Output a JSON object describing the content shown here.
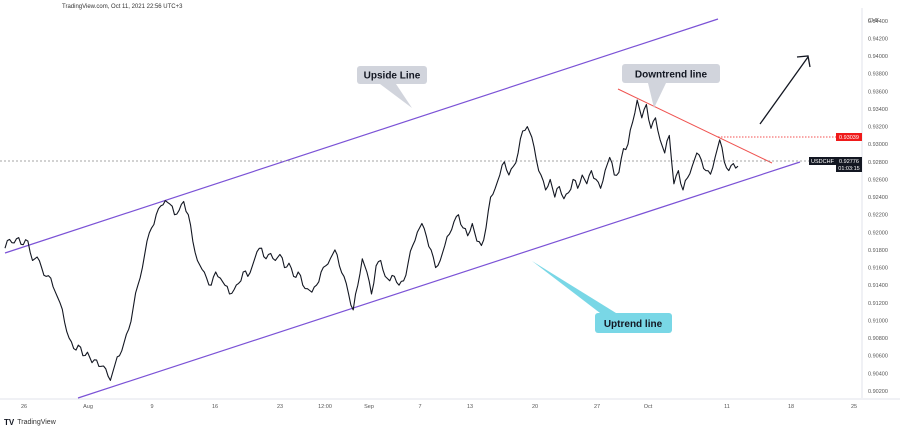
{
  "header": {
    "info": "TradingView.com, Oct 11, 2021 22:56 UTC+3"
  },
  "footer": {
    "brand": "TradingView",
    "logo_glyph": "TV"
  },
  "chart_data": {
    "type": "line",
    "symbol": "USDCHF",
    "current_price": "0.92776",
    "countdown": "01:03:15",
    "level_price": "0.93039",
    "y_ticks": [
      "0.94400",
      "0.94200",
      "0.94000",
      "0.93800",
      "0.93600",
      "0.93400",
      "0.93200",
      "0.93000",
      "0.92800",
      "0.92600",
      "0.92400",
      "0.92200",
      "0.92000",
      "0.91800",
      "0.91600",
      "0.91400",
      "0.91200",
      "0.91000",
      "0.90800",
      "0.90600",
      "0.90400",
      "0.90200"
    ],
    "top_tick_label": "CHF",
    "ylim": [
      0.9012,
      0.945
    ],
    "x_ticks": [
      "26",
      "Aug",
      "9",
      "16",
      "23",
      "12:00",
      "Sep",
      "7",
      "13",
      "20",
      "27",
      "Oct",
      "11",
      "18",
      "25"
    ],
    "series": [
      {
        "values": [
          0.9182,
          0.9192,
          0.9188,
          0.9194,
          0.9186,
          0.919,
          0.9168,
          0.9172,
          0.916,
          0.915,
          0.9148,
          0.9132,
          0.912,
          0.9098,
          0.908,
          0.9068,
          0.9072,
          0.906,
          0.9064,
          0.9052,
          0.9055,
          0.9048,
          0.9045,
          0.9032,
          0.905,
          0.906,
          0.9075,
          0.909,
          0.9115,
          0.914,
          0.916,
          0.919,
          0.9205,
          0.922,
          0.923,
          0.9236,
          0.9232,
          0.922,
          0.9225,
          0.9235,
          0.922,
          0.919,
          0.9168,
          0.9158,
          0.9148,
          0.914,
          0.9155,
          0.9148,
          0.914,
          0.913,
          0.9135,
          0.9142,
          0.9155,
          0.915,
          0.9162,
          0.9178,
          0.9182,
          0.917,
          0.9176,
          0.9168,
          0.9175,
          0.916,
          0.9165,
          0.915,
          0.9155,
          0.914,
          0.9136,
          0.9132,
          0.914,
          0.9155,
          0.9162,
          0.917,
          0.918,
          0.9162,
          0.915,
          0.913,
          0.9112,
          0.914,
          0.917,
          0.9155,
          0.913,
          0.9162,
          0.9168,
          0.915,
          0.9145,
          0.915,
          0.914,
          0.9145,
          0.9165,
          0.9185,
          0.92,
          0.921,
          0.9195,
          0.918,
          0.916,
          0.9168,
          0.9185,
          0.9198,
          0.9212,
          0.922,
          0.9205,
          0.9196,
          0.921,
          0.919,
          0.9185,
          0.9205,
          0.924,
          0.925,
          0.9265,
          0.928,
          0.9265,
          0.9275,
          0.929,
          0.9315,
          0.932,
          0.9308,
          0.9282,
          0.9265,
          0.9248,
          0.926,
          0.924,
          0.9252,
          0.9238,
          0.9245,
          0.926,
          0.925,
          0.9265,
          0.9255,
          0.927,
          0.926,
          0.925,
          0.927,
          0.9285,
          0.9265,
          0.9268,
          0.9295,
          0.93,
          0.9325,
          0.935,
          0.933,
          0.9345,
          0.9318,
          0.933,
          0.9305,
          0.929,
          0.931,
          0.9255,
          0.927,
          0.9248,
          0.9262,
          0.9275,
          0.929,
          0.9282,
          0.927,
          0.9266,
          0.9285,
          0.9305,
          0.928,
          0.927,
          0.9278,
          0.9275
        ]
      }
    ],
    "annotations": {
      "upside_line": "Upside Line",
      "downtrend_line": "Downtrend line",
      "uptrend_line": "Uptrend line"
    },
    "colors": {
      "price_line": "#131722",
      "channel": "#7b52d6",
      "downtrend": "#ef5350",
      "upside_callout": "#d1d4dc",
      "downtrend_callout": "#d1d4dc",
      "uptrend_callout": "#79d7e6",
      "level": "#ef1a1a",
      "current": "#131722"
    }
  }
}
